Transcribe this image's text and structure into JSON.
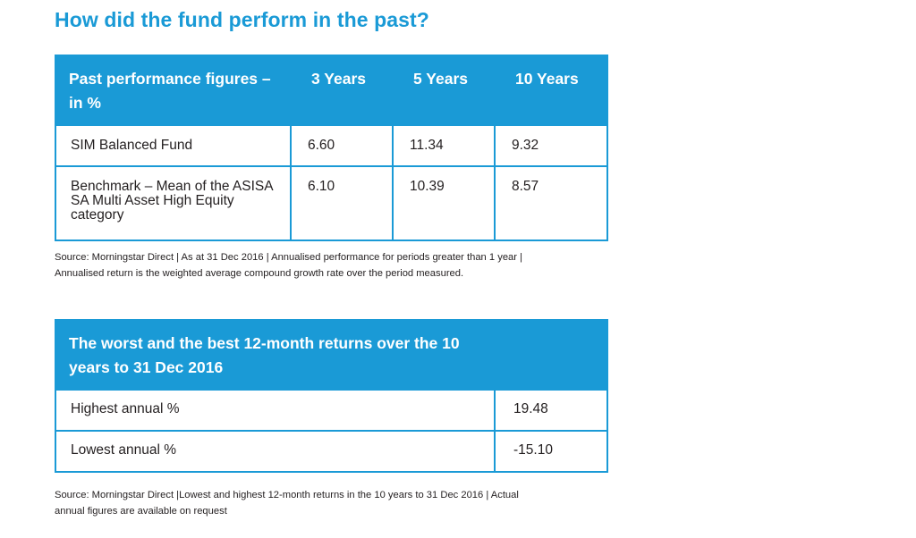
{
  "heading": "How did the fund perform in the past?",
  "performance_table": {
    "header": [
      "Past performance figures – in %",
      "3 Years",
      "5 Years",
      "10 Years"
    ],
    "rows": [
      {
        "label": "SIM Balanced Fund",
        "y3": "6.60",
        "y5": "11.34",
        "y10": "9.32"
      },
      {
        "label": "Benchmark – Mean of the ASISA SA Multi Asset High Equity category",
        "y3": "6.10",
        "y5": "10.39",
        "y10": "8.57"
      }
    ]
  },
  "performance_note": "Source: Morningstar Direct | As at 31 Dec 2016 | Annualised performance for periods greater than 1 year | Annualised return is the weighted average compound growth rate over the period measured.",
  "returns_table": {
    "header": "The worst and the best 12-month returns over the 10 years to 31 Dec 2016",
    "rows": [
      {
        "label": "Highest annual %",
        "value": "19.48"
      },
      {
        "label": "Lowest annual %",
        "value": "-15.10"
      }
    ]
  },
  "returns_note": "Source: Morningstar Direct |Lowest and highest 12-month returns in the 10 years to 31 Dec 2016 | Actual annual figures are available on request",
  "colors": {
    "accent": "#1a9ad6",
    "text": "#231f20",
    "background": "#ffffff"
  }
}
